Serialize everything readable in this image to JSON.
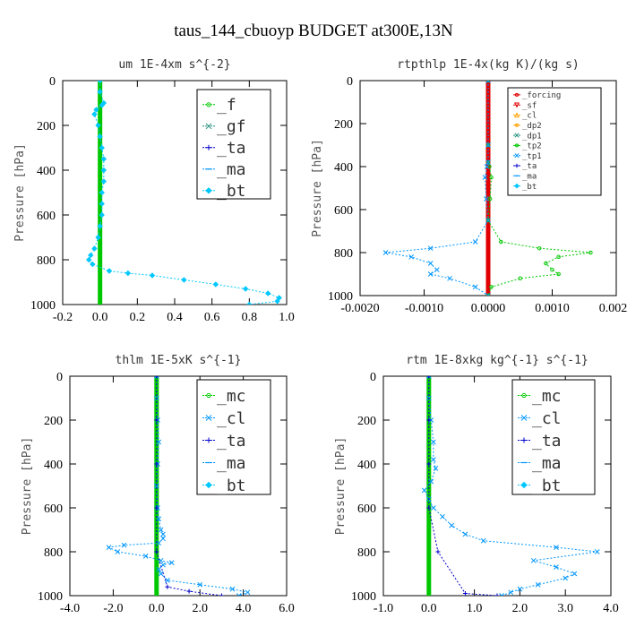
{
  "figure_title": "taus_144_cbuoyp  BUDGET at300E,13N",
  "chart_data": [
    {
      "type": "line",
      "title": "um  1E-4xm s^{-2}",
      "xlabel": "",
      "ylabel": "Pressure [hPa]",
      "xlim": [
        -0.2,
        1.0
      ],
      "ylim": [
        1000,
        0
      ],
      "xticks": [
        -0.2,
        0.0,
        0.2,
        0.4,
        0.6,
        0.8,
        1.0
      ],
      "xtick_labels": [
        "-0.2",
        "0.0",
        "0.2",
        "0.4",
        "0.6",
        "0.8",
        "1.0"
      ],
      "yticks": [
        0,
        200,
        400,
        600,
        800,
        1000
      ],
      "ytick_labels": [
        "0",
        "200",
        "400",
        "600",
        "800",
        "1000"
      ],
      "legend_position": "top-right",
      "series": [
        {
          "name": "_f",
          "color": "#00c800",
          "marker": "circle",
          "x": [
            0,
            0,
            0,
            0,
            0,
            0,
            0,
            0,
            0,
            0,
            0,
            0,
            0,
            0,
            0,
            0,
            0,
            0,
            0,
            0,
            0
          ],
          "p": [
            0,
            50,
            100,
            150,
            200,
            250,
            300,
            350,
            400,
            450,
            500,
            550,
            600,
            650,
            700,
            750,
            800,
            850,
            900,
            950,
            1000
          ]
        },
        {
          "name": "_gf",
          "color": "#1e8c78",
          "marker": "x",
          "x": [],
          "p": []
        },
        {
          "name": "_ta",
          "color": "#0000cc",
          "marker": "plus",
          "x": [],
          "p": []
        },
        {
          "name": "_ma",
          "color": "#0096ff",
          "marker": "dash",
          "x": [],
          "p": []
        },
        {
          "name": "_bt",
          "color": "#00c8ff",
          "marker": "diamond",
          "x": [
            0.0,
            0.0,
            0.02,
            0.01,
            -0.02,
            -0.03,
            -0.01,
            0.0,
            0.01,
            0.02,
            0.02,
            0.02,
            0.01,
            0.01,
            0.01,
            0.0,
            -0.01,
            -0.03,
            -0.05,
            -0.06,
            -0.04,
            0.05,
            0.15,
            0.28,
            0.45,
            0.62,
            0.78,
            0.9,
            0.96,
            0.95,
            0.8
          ],
          "p": [
            0,
            50,
            100,
            110,
            130,
            150,
            200,
            250,
            300,
            350,
            400,
            450,
            500,
            550,
            600,
            650,
            700,
            750,
            780,
            800,
            820,
            850,
            860,
            870,
            890,
            910,
            930,
            950,
            970,
            985,
            1000
          ]
        }
      ]
    },
    {
      "type": "line",
      "title": "rtpthlp  1E-4x(kg K)/(kg s)",
      "xlabel": "",
      "ylabel": "Pressure [hPa]",
      "xlim": [
        -0.002,
        0.002
      ],
      "ylim": [
        1000,
        0
      ],
      "xticks": [
        -0.002,
        -0.001,
        0.0,
        0.001,
        0.002
      ],
      "xtick_labels": [
        "-0.0020",
        "-0.0010",
        "0.0000",
        "0.0010",
        "0.0020"
      ],
      "yticks": [
        0,
        200,
        400,
        600,
        800,
        1000
      ],
      "ytick_labels": [
        "0",
        "200",
        "400",
        "600",
        "800",
        "1000"
      ],
      "legend_position": "top-right",
      "series": [
        {
          "name": "_forcing",
          "color": "#e00000",
          "marker": "circle",
          "x": [
            0,
            0,
            0,
            0,
            0,
            0,
            0,
            0,
            0,
            0,
            0,
            0,
            0,
            0,
            0,
            0,
            0,
            0,
            0,
            0,
            0
          ],
          "p": [
            0,
            50,
            100,
            150,
            200,
            250,
            300,
            350,
            400,
            450,
            500,
            550,
            600,
            650,
            700,
            750,
            800,
            850,
            900,
            950,
            1000
          ]
        },
        {
          "name": "_sf",
          "color": "#e00000",
          "marker": "triangle-down",
          "x": [],
          "p": []
        },
        {
          "name": "_cl",
          "color": "#ffa000",
          "marker": "triangle",
          "x": [],
          "p": []
        },
        {
          "name": "_dp2",
          "color": "#ffa000",
          "marker": "circle",
          "x": [],
          "p": []
        },
        {
          "name": "_dp1",
          "color": "#1e8c78",
          "marker": "x",
          "x": [],
          "p": []
        },
        {
          "name": "_tp2",
          "color": "#00c800",
          "marker": "circle",
          "x": [
            0,
            0,
            0,
            2e-05,
            5e-05,
            3e-05,
            0,
            0.0002,
            0.0008,
            0.0016,
            0.0011,
            0.0009,
            0.001,
            0.0011,
            0.0005,
            5e-05,
            0
          ],
          "p": [
            0,
            300,
            380,
            400,
            450,
            550,
            650,
            750,
            780,
            800,
            820,
            850,
            880,
            900,
            920,
            960,
            1000
          ]
        },
        {
          "name": "_tp1",
          "color": "#0096ff",
          "marker": "x",
          "x": [
            0,
            0,
            0,
            -2e-05,
            -5e-05,
            -3e-05,
            0,
            -0.0002,
            -0.0009,
            -0.0016,
            -0.0012,
            -0.0009,
            -0.0008,
            -0.0009,
            -0.0006,
            -0.0002,
            0
          ],
          "p": [
            0,
            300,
            380,
            400,
            450,
            550,
            650,
            750,
            780,
            800,
            820,
            850,
            880,
            900,
            920,
            960,
            1000
          ]
        },
        {
          "name": "_ta",
          "color": "#0000cc",
          "marker": "plus",
          "x": [],
          "p": []
        },
        {
          "name": "_ma",
          "color": "#0096ff",
          "marker": "dash",
          "x": [],
          "p": []
        },
        {
          "name": "_bt",
          "color": "#00c8ff",
          "marker": "diamond",
          "x": [],
          "p": []
        }
      ]
    },
    {
      "type": "line",
      "title": "thlm  1E-5xK s^{-1}",
      "xlabel": "",
      "ylabel": "Pressure [hPa]",
      "xlim": [
        -4.0,
        6.0
      ],
      "ylim": [
        1000,
        0
      ],
      "xticks": [
        -4.0,
        -2.0,
        0.0,
        2.0,
        4.0,
        6.0
      ],
      "xtick_labels": [
        "-4.0",
        "-2.0",
        "0.0",
        "2.0",
        "4.0",
        "6.0"
      ],
      "yticks": [
        0,
        200,
        400,
        600,
        800,
        1000
      ],
      "ytick_labels": [
        "0",
        "200",
        "400",
        "600",
        "800",
        "1000"
      ],
      "legend_position": "top-right",
      "series": [
        {
          "name": "_mc",
          "color": "#00c800",
          "marker": "circle",
          "x": [
            0,
            0,
            0,
            0,
            0,
            0,
            0,
            0,
            0,
            0,
            0,
            0,
            0,
            0,
            0,
            0,
            0,
            0,
            0,
            0,
            0
          ],
          "p": [
            0,
            50,
            100,
            150,
            200,
            250,
            300,
            350,
            400,
            450,
            500,
            550,
            600,
            650,
            700,
            750,
            800,
            850,
            900,
            950,
            1000
          ]
        },
        {
          "name": "_cl",
          "color": "#0096ff",
          "marker": "x",
          "x": [
            0.0,
            0.0,
            0.05,
            0.1,
            0.05,
            0.0,
            0.05,
            0.1,
            0.2,
            0.3,
            0.3,
            0.1,
            -1.5,
            -2.2,
            -1.8,
            -0.5,
            0.2,
            0.7,
            0.3,
            0.1,
            0.2,
            0.5,
            2.0,
            3.5,
            4.2,
            3.8
          ],
          "p": [
            0,
            100,
            200,
            300,
            400,
            500,
            600,
            650,
            700,
            720,
            740,
            760,
            770,
            780,
            800,
            820,
            840,
            850,
            860,
            880,
            900,
            930,
            950,
            970,
            985,
            1000
          ]
        },
        {
          "name": "_ta",
          "color": "#0000cc",
          "marker": "plus",
          "x": [
            0,
            0,
            0,
            0,
            0,
            0.5,
            1.5,
            3.0
          ],
          "p": [
            0,
            200,
            400,
            600,
            800,
            960,
            980,
            1000
          ]
        },
        {
          "name": "_ma",
          "color": "#0096ff",
          "marker": "dash",
          "x": [],
          "p": []
        },
        {
          "name": "_bt",
          "color": "#00c8ff",
          "marker": "diamond",
          "x": [],
          "p": []
        }
      ]
    },
    {
      "type": "line",
      "title": "rtm  1E-8xkg kg^{-1} s^{-1}",
      "xlabel": "",
      "ylabel": "Pressure [hPa]",
      "xlim": [
        -1.0,
        4.0
      ],
      "ylim": [
        1000,
        0
      ],
      "xticks": [
        -1.0,
        0.0,
        1.0,
        2.0,
        3.0,
        4.0
      ],
      "xtick_labels": [
        "-1.0",
        "0.0",
        "1.0",
        "2.0",
        "3.0",
        "4.0"
      ],
      "yticks": [
        0,
        200,
        400,
        600,
        800,
        1000
      ],
      "ytick_labels": [
        "0",
        "200",
        "400",
        "600",
        "800",
        "1000"
      ],
      "legend_position": "top-right",
      "series": [
        {
          "name": "_mc",
          "color": "#00c800",
          "marker": "circle",
          "x": [
            0,
            0,
            0,
            0,
            0,
            0,
            0,
            0,
            0,
            0,
            0,
            0,
            0,
            0,
            0,
            0,
            0,
            0,
            0,
            0,
            0
          ],
          "p": [
            0,
            50,
            100,
            150,
            200,
            250,
            300,
            350,
            400,
            450,
            500,
            550,
            600,
            650,
            700,
            750,
            800,
            850,
            900,
            950,
            1000
          ]
        },
        {
          "name": "_cl",
          "color": "#0096ff",
          "marker": "x",
          "x": [
            0.0,
            0.0,
            0.05,
            0.1,
            0.1,
            0.15,
            0.05,
            -0.1,
            0.0,
            0.1,
            0.3,
            0.5,
            0.8,
            1.2,
            2.8,
            3.7,
            2.3,
            2.8,
            3.2,
            3.0,
            2.4,
            2.0,
            1.8,
            1.6
          ],
          "p": [
            0,
            100,
            200,
            300,
            380,
            420,
            480,
            520,
            560,
            600,
            640,
            680,
            720,
            750,
            780,
            800,
            840,
            870,
            900,
            920,
            950,
            970,
            985,
            1000
          ]
        },
        {
          "name": "_ta",
          "color": "#0000cc",
          "marker": "plus",
          "x": [
            0,
            0,
            0,
            0,
            0.2,
            0.8,
            1.5
          ],
          "p": [
            0,
            200,
            400,
            600,
            800,
            990,
            1000
          ]
        },
        {
          "name": "_ma",
          "color": "#0096ff",
          "marker": "dash",
          "x": [],
          "p": []
        },
        {
          "name": "_bt",
          "color": "#00c8ff",
          "marker": "diamond",
          "x": [],
          "p": []
        }
      ]
    }
  ]
}
